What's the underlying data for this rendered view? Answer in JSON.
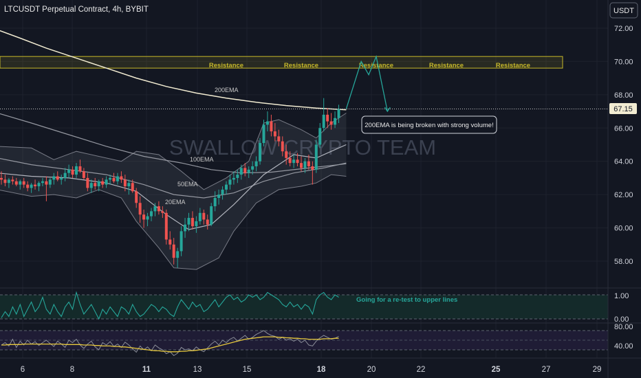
{
  "header": {
    "title": "LTCUSDT Perpetual Contract, 4h, BYBIT",
    "currency_button": "USDT"
  },
  "watermark": "SWALLOW CRYPTO TEAM",
  "colors": {
    "background": "#131722",
    "up_candle": "#26a69a",
    "down_candle": "#ef5350",
    "ema200": "#f2ecd2",
    "resistance_zone": "#c8b92a",
    "indicator_teal": "#26a69a",
    "rsi_purple": "#7e57c2",
    "rsi_yellow": "#e8c93c"
  },
  "chart_data": {
    "type": "candlestick",
    "title": "LTCUSDT Perpetual Contract, 4h, BYBIT",
    "price_axis": {
      "ticks": [
        "72.00",
        "70.00",
        "68.00",
        "66.00",
        "64.00",
        "62.00",
        "60.00",
        "58.00"
      ],
      "range": [
        56.6,
        73.2
      ],
      "current_price": "67.15"
    },
    "x_axis": {
      "ticks": [
        "6",
        "8",
        "11",
        "13",
        "15",
        "18",
        "20",
        "22",
        "25",
        "27",
        "29"
      ],
      "bold_ticks": [
        "11",
        "18",
        "25"
      ]
    },
    "candles": [
      [
        63.0,
        63.4,
        62.6,
        62.9
      ],
      [
        62.9,
        63.2,
        62.5,
        62.7
      ],
      [
        62.7,
        63.0,
        62.4,
        62.9
      ],
      [
        62.9,
        63.1,
        62.6,
        62.8
      ],
      [
        62.8,
        63.0,
        62.5,
        62.6
      ],
      [
        62.6,
        62.9,
        62.3,
        62.8
      ],
      [
        62.8,
        63.0,
        62.4,
        62.6
      ],
      [
        62.6,
        62.8,
        62.2,
        62.4
      ],
      [
        62.4,
        62.7,
        62.1,
        62.6
      ],
      [
        62.6,
        62.9,
        62.3,
        62.5
      ],
      [
        62.5,
        62.8,
        62.2,
        62.7
      ],
      [
        62.7,
        63.0,
        62.5,
        62.8
      ],
      [
        62.8,
        63.1,
        61.6,
        62.6
      ],
      [
        62.6,
        63.0,
        62.4,
        62.9
      ],
      [
        62.9,
        63.3,
        62.6,
        63.1
      ],
      [
        63.1,
        63.4,
        62.8,
        62.9
      ],
      [
        62.9,
        63.2,
        62.6,
        63.0
      ],
      [
        63.0,
        63.6,
        62.8,
        63.3
      ],
      [
        63.3,
        63.8,
        63.0,
        63.5
      ],
      [
        63.5,
        63.7,
        63.0,
        63.2
      ],
      [
        63.2,
        63.9,
        63.0,
        63.7
      ],
      [
        63.7,
        64.1,
        63.3,
        63.4
      ],
      [
        63.4,
        63.6,
        62.9,
        63.0
      ],
      [
        63.0,
        63.3,
        62.2,
        62.4
      ],
      [
        62.4,
        62.9,
        62.1,
        62.7
      ],
      [
        62.7,
        63.0,
        62.3,
        62.5
      ],
      [
        62.5,
        62.9,
        62.2,
        62.8
      ],
      [
        62.8,
        63.0,
        62.4,
        62.6
      ],
      [
        62.6,
        63.1,
        62.4,
        62.9
      ],
      [
        62.9,
        63.2,
        62.6,
        63.0
      ],
      [
        63.0,
        63.3,
        62.7,
        62.8
      ],
      [
        62.8,
        63.3,
        62.6,
        63.1
      ],
      [
        63.1,
        63.4,
        62.7,
        62.9
      ],
      [
        62.9,
        63.2,
        62.2,
        62.5
      ],
      [
        62.5,
        62.9,
        62.0,
        62.7
      ],
      [
        62.7,
        62.9,
        62.1,
        62.2
      ],
      [
        62.2,
        62.4,
        61.2,
        61.5
      ],
      [
        61.5,
        61.9,
        60.3,
        60.8
      ],
      [
        60.8,
        61.1,
        60.0,
        60.5
      ],
      [
        60.5,
        60.9,
        60.1,
        60.7
      ],
      [
        60.7,
        61.2,
        60.4,
        61.0
      ],
      [
        61.0,
        61.5,
        60.7,
        61.3
      ],
      [
        61.3,
        61.6,
        60.8,
        61.0
      ],
      [
        61.0,
        61.3,
        60.6,
        60.9
      ],
      [
        60.9,
        61.1,
        59.0,
        59.3
      ],
      [
        59.3,
        59.8,
        58.7,
        59.0
      ],
      [
        59.0,
        59.4,
        57.8,
        58.2
      ],
      [
        58.2,
        58.8,
        57.6,
        58.6
      ],
      [
        58.6,
        60.1,
        58.3,
        59.8
      ],
      [
        59.8,
        60.6,
        59.4,
        60.2
      ],
      [
        60.2,
        60.9,
        59.8,
        60.6
      ],
      [
        60.6,
        61.0,
        59.9,
        60.1
      ],
      [
        60.1,
        60.7,
        59.7,
        60.4
      ],
      [
        60.4,
        61.2,
        60.2,
        60.9
      ],
      [
        60.9,
        61.1,
        60.2,
        60.5
      ],
      [
        60.5,
        60.8,
        59.9,
        60.2
      ],
      [
        60.2,
        61.5,
        60.1,
        61.3
      ],
      [
        61.3,
        62.2,
        61.0,
        61.8
      ],
      [
        61.8,
        62.3,
        61.4,
        62.0
      ],
      [
        62.0,
        62.5,
        61.7,
        62.3
      ],
      [
        62.3,
        62.8,
        62.0,
        62.6
      ],
      [
        62.6,
        63.2,
        62.3,
        62.9
      ],
      [
        62.9,
        63.4,
        62.6,
        63.0
      ],
      [
        63.0,
        63.5,
        62.7,
        63.2
      ],
      [
        63.2,
        63.8,
        62.9,
        63.6
      ],
      [
        63.6,
        63.9,
        63.1,
        63.3
      ],
      [
        63.3,
        63.7,
        63.0,
        63.5
      ],
      [
        63.5,
        64.0,
        63.2,
        63.7
      ],
      [
        63.7,
        64.3,
        63.4,
        64.0
      ],
      [
        64.0,
        65.4,
        63.8,
        65.1
      ],
      [
        65.1,
        66.5,
        64.9,
        66.2
      ],
      [
        66.2,
        67.0,
        65.8,
        66.4
      ],
      [
        66.4,
        66.8,
        65.5,
        65.8
      ],
      [
        65.8,
        66.3,
        65.2,
        65.5
      ],
      [
        65.5,
        65.9,
        64.9,
        65.2
      ],
      [
        65.2,
        65.5,
        64.3,
        64.6
      ],
      [
        64.6,
        65.0,
        63.8,
        64.2
      ],
      [
        64.2,
        64.6,
        63.7,
        63.9
      ],
      [
        63.9,
        64.4,
        63.6,
        64.1
      ],
      [
        64.1,
        64.5,
        63.7,
        63.9
      ],
      [
        63.9,
        64.3,
        63.4,
        63.6
      ],
      [
        63.6,
        64.2,
        63.3,
        64.0
      ],
      [
        64.0,
        64.4,
        63.5,
        63.7
      ],
      [
        63.7,
        64.0,
        62.6,
        63.5
      ],
      [
        63.5,
        65.3,
        63.3,
        65.0
      ],
      [
        65.0,
        66.3,
        64.8,
        66.0
      ],
      [
        66.0,
        67.8,
        65.8,
        66.8
      ],
      [
        66.8,
        67.2,
        66.0,
        66.4
      ],
      [
        66.4,
        66.9,
        65.9,
        66.2
      ],
      [
        66.2,
        67.0,
        66.0,
        66.6
      ],
      [
        66.6,
        67.4,
        66.3,
        67.15
      ]
    ],
    "series": [
      {
        "name": "200EMA",
        "values": [
          [
            -1,
            71.9
          ],
          [
            5,
            71.4
          ],
          [
            12,
            70.8
          ],
          [
            20,
            70.2
          ],
          [
            28,
            69.6
          ],
          [
            36,
            69.0
          ],
          [
            44,
            68.5
          ],
          [
            52,
            68.1
          ],
          [
            60,
            67.8
          ],
          [
            68,
            67.55
          ],
          [
            76,
            67.35
          ],
          [
            84,
            67.2
          ],
          [
            92,
            67.1
          ]
        ]
      },
      {
        "name": "100EMA",
        "values": [
          [
            -1,
            66.9
          ],
          [
            8,
            66.3
          ],
          [
            18,
            65.6
          ],
          [
            28,
            64.9
          ],
          [
            38,
            64.3
          ],
          [
            48,
            63.9
          ],
          [
            56,
            63.5
          ],
          [
            64,
            63.3
          ],
          [
            72,
            63.35
          ],
          [
            80,
            63.55
          ],
          [
            88,
            63.75
          ],
          [
            92,
            63.85
          ]
        ]
      },
      {
        "name": "50EMA",
        "values": [
          [
            -1,
            64.2
          ],
          [
            8,
            63.8
          ],
          [
            18,
            63.5
          ],
          [
            28,
            63.2
          ],
          [
            38,
            62.6
          ],
          [
            46,
            62.0
          ],
          [
            54,
            61.8
          ],
          [
            62,
            62.1
          ],
          [
            70,
            62.8
          ],
          [
            78,
            63.3
          ],
          [
            86,
            63.6
          ],
          [
            92,
            63.9
          ]
        ]
      },
      {
        "name": "20EMA",
        "values": [
          [
            -1,
            63.3
          ],
          [
            8,
            63.1
          ],
          [
            18,
            63.0
          ],
          [
            28,
            62.7
          ],
          [
            36,
            62.2
          ],
          [
            44,
            60.8
          ],
          [
            50,
            59.9
          ],
          [
            56,
            60.2
          ],
          [
            62,
            61.4
          ],
          [
            70,
            63.2
          ],
          [
            78,
            64.4
          ],
          [
            84,
            64.2
          ],
          [
            88,
            64.6
          ],
          [
            92,
            65.0
          ]
        ]
      }
    ],
    "bands": {
      "upper": [
        [
          -1,
          64.9
        ],
        [
          8,
          64.8
        ],
        [
          14,
          64.1
        ],
        [
          20,
          64.6
        ],
        [
          26,
          64.3
        ],
        [
          32,
          64.0
        ],
        [
          36,
          64.6
        ],
        [
          42,
          64.4
        ],
        [
          48,
          63.4
        ],
        [
          54,
          62.3
        ],
        [
          60,
          63.0
        ],
        [
          66,
          64.0
        ],
        [
          70,
          66.3
        ],
        [
          74,
          66.5
        ],
        [
          80,
          65.9
        ],
        [
          84,
          65.4
        ],
        [
          88,
          66.3
        ],
        [
          92,
          66.9
        ]
      ],
      "lower": [
        [
          -1,
          62.3
        ],
        [
          8,
          61.9
        ],
        [
          14,
          62.0
        ],
        [
          20,
          61.8
        ],
        [
          26,
          62.3
        ],
        [
          32,
          61.8
        ],
        [
          36,
          60.4
        ],
        [
          42,
          58.8
        ],
        [
          46,
          57.6
        ],
        [
          52,
          57.5
        ],
        [
          58,
          58.2
        ],
        [
          62,
          59.8
        ],
        [
          68,
          61.5
        ],
        [
          74,
          62.3
        ],
        [
          80,
          62.5
        ],
        [
          84,
          62.7
        ],
        [
          88,
          63.2
        ],
        [
          92,
          63.1
        ]
      ]
    },
    "annotations": {
      "resistance_zone": {
        "low": 69.6,
        "high": 70.3
      },
      "resistance_labels": [
        "Resistance",
        "Resistance",
        "Resistance",
        "Resistance",
        "Resistance"
      ],
      "ema_labels": [
        "200EMA",
        "100EMA",
        "50EMA",
        "20EMA"
      ],
      "callout": "200EMA is being broken with strong volume!",
      "projection": [
        [
          92,
          67.15
        ],
        [
          96,
          70.0
        ],
        [
          98,
          69.2
        ],
        [
          100,
          70.3
        ],
        [
          103,
          67.0
        ]
      ]
    },
    "oscillator": {
      "ticks": [
        "1.00",
        "0.00"
      ],
      "note": "Going for a re-test to upper lines",
      "values": [
        0.05,
        0.3,
        0.1,
        0.5,
        0.2,
        0.6,
        0.1,
        0.4,
        0.7,
        0.3,
        0.5,
        0.9,
        0.4,
        0.2,
        0.6,
        0.3,
        0.1,
        0.5,
        0.7,
        0.4,
        1.1,
        0.6,
        0.2,
        0.4,
        0.6,
        0.3,
        0.0,
        0.4,
        0.2,
        0.5,
        0.3,
        0.1,
        0.5,
        0.4,
        0.2,
        0.6,
        0.3,
        0.1,
        0.2,
        0.4,
        0.6,
        0.5,
        0.3,
        0.5,
        0.4,
        0.2,
        0.1,
        0.5,
        0.8,
        0.6,
        0.4,
        0.7,
        0.5,
        0.6,
        0.3,
        0.4,
        0.6,
        0.8,
        0.5,
        0.7,
        0.9,
        1.0,
        0.8,
        0.9,
        0.7,
        0.8,
        1.0,
        0.9,
        1.0,
        0.8,
        0.9,
        1.1,
        1.0,
        0.9,
        0.8,
        0.6,
        0.5,
        0.7,
        0.5,
        0.6,
        0.4,
        0.6,
        0.5,
        0.2,
        0.8,
        1.0,
        1.1,
        0.9,
        0.8,
        1.0,
        0.9
      ]
    },
    "rsi": {
      "ticks": [
        "80.00",
        "40.00"
      ],
      "fast": [
        50,
        55,
        48,
        62,
        45,
        58,
        50,
        60,
        52,
        57,
        49,
        55,
        60,
        53,
        47,
        58,
        52,
        45,
        60,
        55,
        62,
        50,
        43,
        52,
        58,
        46,
        40,
        55,
        50,
        57,
        47,
        52,
        45,
        56,
        50,
        42,
        35,
        48,
        40,
        46,
        38,
        50,
        44,
        40,
        32,
        36,
        28,
        33,
        45,
        40,
        42,
        38,
        46,
        40,
        36,
        44,
        52,
        58,
        50,
        60,
        55,
        62,
        66,
        58,
        64,
        70,
        62,
        66,
        72,
        76,
        80,
        74,
        70,
        68,
        62,
        66,
        60,
        63,
        58,
        62,
        55,
        60,
        50,
        48,
        58,
        65,
        70,
        66,
        62,
        64,
        68
      ],
      "slow": [
        50,
        50,
        51,
        51,
        51,
        51,
        52,
        52,
        52,
        52,
        52,
        52,
        52,
        52,
        52,
        52,
        52,
        51,
        51,
        51,
        51,
        51,
        50,
        50,
        50,
        49,
        49,
        48,
        48,
        48,
        47,
        47,
        46,
        46,
        45,
        44,
        43,
        42,
        41,
        40,
        39,
        38,
        38,
        37,
        37,
        36,
        36,
        36,
        37,
        37,
        38,
        38,
        39,
        40,
        41,
        42,
        44,
        46,
        48,
        50,
        52,
        54,
        56,
        58,
        60,
        62,
        63,
        64,
        65,
        66,
        67,
        67,
        67,
        67,
        66,
        66,
        65,
        65,
        64,
        64,
        63,
        63,
        62,
        62,
        62,
        62,
        63,
        63,
        63,
        64,
        64
      ]
    }
  }
}
